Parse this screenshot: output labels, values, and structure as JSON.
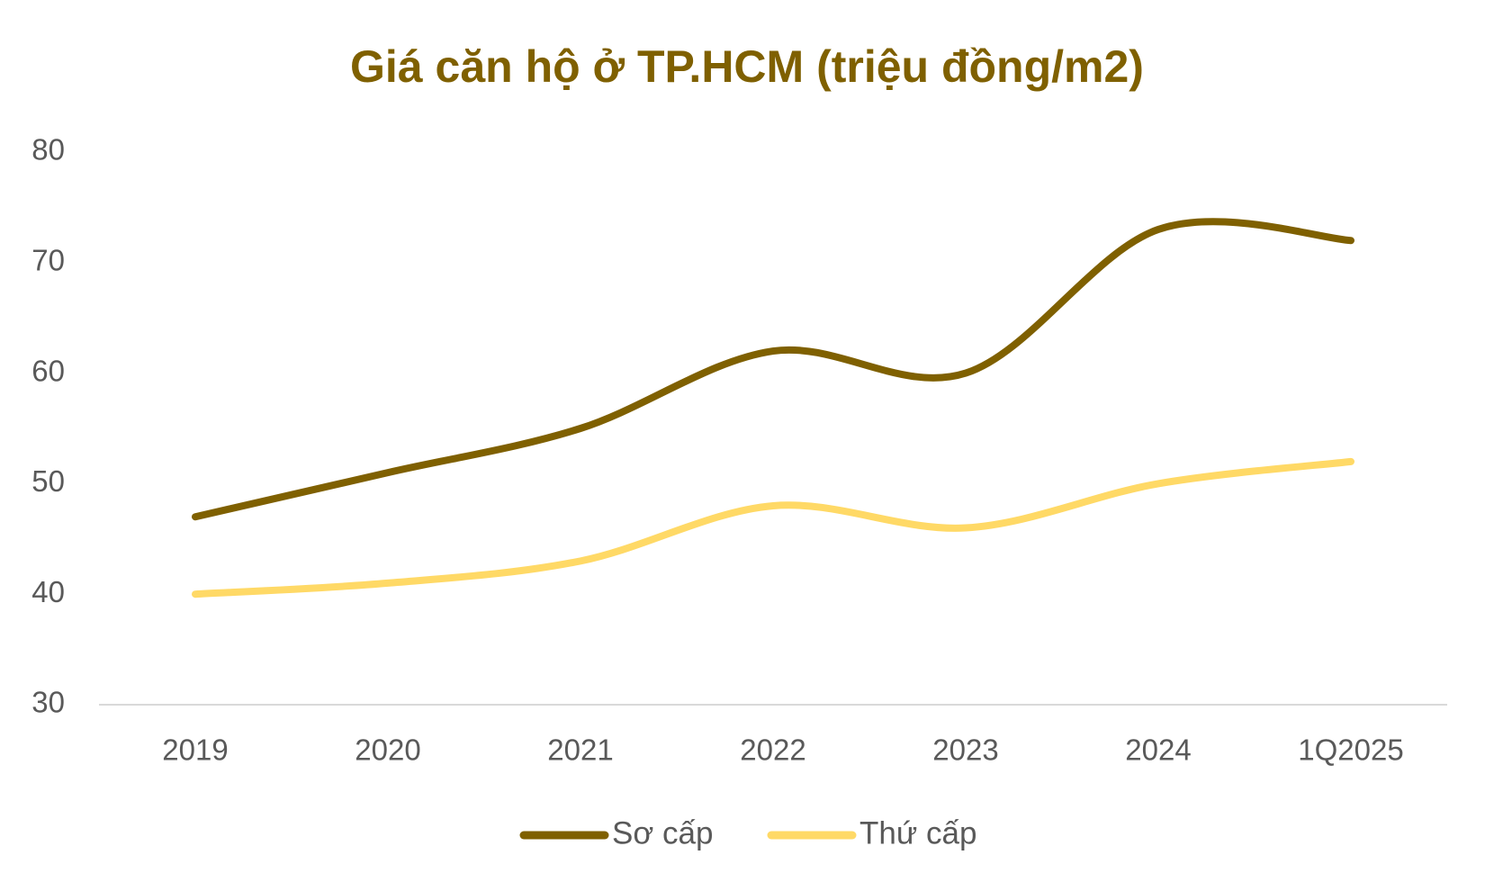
{
  "chart_data": {
    "type": "line",
    "title": "Giá căn hộ ở TP.HCM (triệu đồng/m2)",
    "categories": [
      "2019",
      "2020",
      "2021",
      "2022",
      "2023",
      "2024",
      "1Q2025"
    ],
    "series": [
      {
        "name": "Sơ cấp",
        "color": "#7f6000",
        "values": [
          47,
          51,
          55,
          62,
          60,
          73,
          72
        ]
      },
      {
        "name": "Thứ cấp",
        "color": "#ffd966",
        "values": [
          40,
          41,
          43,
          48,
          46,
          50,
          52
        ]
      }
    ],
    "ylim": [
      30,
      80
    ],
    "yticks": [
      30,
      40,
      50,
      60,
      70,
      80
    ],
    "grid": false,
    "smooth": true,
    "legend": "bottom"
  }
}
